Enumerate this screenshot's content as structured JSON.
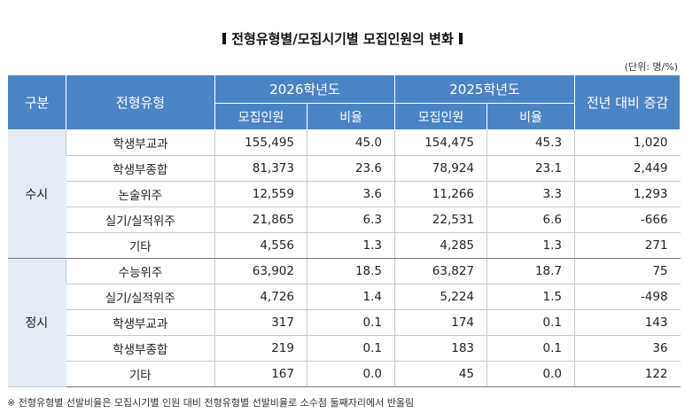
{
  "title": "전형유형별/모집시기별 모집인원의 변화",
  "unit": "(단위: 명/%)",
  "headers": {
    "group": "구분",
    "type": "전형유형",
    "year2026": "2026학년도",
    "year2025": "2025학년도",
    "change": "전년 대비 증감",
    "count": "모집인원",
    "ratio": "비율"
  },
  "groups": [
    {
      "name": "수시",
      "rows": [
        {
          "type": "학생부교과",
          "c2026": "155,495",
          "r2026": "45.0",
          "c2025": "154,475",
          "r2025": "45.3",
          "change": "1,020"
        },
        {
          "type": "학생부종합",
          "c2026": "81,373",
          "r2026": "23.6",
          "c2025": "78,924",
          "r2025": "23.1",
          "change": "2,449"
        },
        {
          "type": "논술위주",
          "c2026": "12,559",
          "r2026": "3.6",
          "c2025": "11,266",
          "r2025": "3.3",
          "change": "1,293"
        },
        {
          "type": "실기/실적위주",
          "c2026": "21,865",
          "r2026": "6.3",
          "c2025": "22,531",
          "r2025": "6.6",
          "change": "-666"
        },
        {
          "type": "기타",
          "c2026": "4,556",
          "r2026": "1.3",
          "c2025": "4,285",
          "r2025": "1.3",
          "change": "271"
        }
      ]
    },
    {
      "name": "정시",
      "rows": [
        {
          "type": "수능위주",
          "c2026": "63,902",
          "r2026": "18.5",
          "c2025": "63,827",
          "r2025": "18.7",
          "change": "75"
        },
        {
          "type": "실기/실적위주",
          "c2026": "4,726",
          "r2026": "1.4",
          "c2025": "5,224",
          "r2025": "1.5",
          "change": "-498"
        },
        {
          "type": "학생부교과",
          "c2026": "317",
          "r2026": "0.1",
          "c2025": "174",
          "r2025": "0.1",
          "change": "143"
        },
        {
          "type": "학생부종합",
          "c2026": "219",
          "r2026": "0.1",
          "c2025": "183",
          "r2025": "0.1",
          "change": "36"
        },
        {
          "type": "기타",
          "c2026": "167",
          "r2026": "0.0",
          "c2025": "45",
          "r2025": "0.0",
          "change": "122"
        }
      ]
    }
  ],
  "note": "※ 전형유형별 선발비율은 모집시기별 인원 대비 전형유형별 선발비율로 소수점 둘째자리에서 반올림"
}
